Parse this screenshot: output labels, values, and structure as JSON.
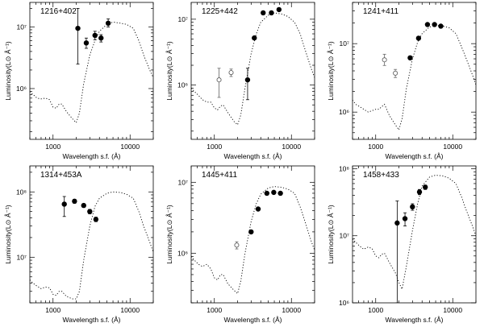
{
  "chart_data": [
    {
      "type": "scatter",
      "title": "1216+402",
      "xlabel": "Wavelength s.f. (Å)",
      "ylabel": "Luminosity(L⊙ Å⁻¹)",
      "xscale": "log",
      "yscale": "log",
      "xlim": [
        500,
        20000
      ],
      "ylim": [
        150000,
        25000000
      ],
      "xticks": [
        {
          "v": 1000,
          "label": "1000"
        },
        {
          "v": 10000,
          "label": "10000"
        }
      ],
      "yticks": [
        {
          "v": 1000000,
          "label": "10⁶"
        },
        {
          "v": 10000000,
          "label": "10⁷"
        }
      ],
      "filled": [
        {
          "x": 2100,
          "y": 9500000,
          "ylo": 2500000,
          "yhi": 20000000
        },
        {
          "x": 2700,
          "y": 5500000,
          "ylo": 4500000,
          "yhi": 6600000
        },
        {
          "x": 3500,
          "y": 7300000,
          "ylo": 6200000,
          "yhi": 8500000
        },
        {
          "x": 4200,
          "y": 6600000,
          "ylo": 5700000,
          "yhi": 7500000
        },
        {
          "x": 5200,
          "y": 11500000,
          "ylo": 10000000,
          "yhi": 13500000
        }
      ],
      "open": [],
      "model": [
        [
          500,
          900000
        ],
        [
          550,
          800000
        ],
        [
          620,
          700000
        ],
        [
          700,
          680000
        ],
        [
          800,
          700000
        ],
        [
          900,
          660000
        ],
        [
          1000,
          500000
        ],
        [
          1100,
          480000
        ],
        [
          1200,
          560000
        ],
        [
          1300,
          560000
        ],
        [
          1500,
          420000
        ],
        [
          1800,
          320000
        ],
        [
          2000,
          280000
        ],
        [
          2200,
          400000
        ],
        [
          2500,
          1200000
        ],
        [
          3000,
          3500000
        ],
        [
          3500,
          6000000
        ],
        [
          4000,
          8500000
        ],
        [
          5000,
          11000000
        ],
        [
          6000,
          12000000
        ],
        [
          7500,
          11500000
        ],
        [
          9000,
          11000000
        ],
        [
          11000,
          9500000
        ],
        [
          13000,
          6000000
        ],
        [
          15000,
          3500000
        ],
        [
          18000,
          2000000
        ],
        [
          20000,
          1500000
        ]
      ]
    },
    {
      "type": "scatter",
      "title": "1225+442",
      "xlabel": "Wavelength s.f. (Å)",
      "ylabel": "Luminosity(L⊙ Å⁻¹)",
      "xscale": "log",
      "yscale": "log",
      "xlim": [
        500,
        20000
      ],
      "ylim": [
        150000,
        18000000
      ],
      "xticks": [
        {
          "v": 1000,
          "label": "1000"
        },
        {
          "v": 10000,
          "label": "10000"
        }
      ],
      "yticks": [
        {
          "v": 1000000,
          "label": "10⁶"
        },
        {
          "v": 10000000,
          "label": "10⁷"
        }
      ],
      "filled": [
        {
          "x": 2700,
          "y": 1200000,
          "ylo": 600000,
          "yhi": 1800000
        },
        {
          "x": 3300,
          "y": 5200000,
          "ylo": 5000000,
          "yhi": 5400000
        },
        {
          "x": 4300,
          "y": 12500000,
          "ylo": 12000000,
          "yhi": 13000000
        },
        {
          "x": 5500,
          "y": 12500000,
          "ylo": 12000000,
          "yhi": 13000000
        },
        {
          "x": 6900,
          "y": 14000000,
          "ylo": 13500000,
          "yhi": 14500000
        }
      ],
      "open": [
        {
          "x": 1150,
          "y": 1200000,
          "ylo": 650000,
          "yhi": 1800000
        },
        {
          "x": 1650,
          "y": 1550000,
          "ylo": 1350000,
          "yhi": 1750000
        }
      ],
      "model": [
        [
          500,
          900000
        ],
        [
          550,
          800000
        ],
        [
          620,
          700000
        ],
        [
          700,
          600000
        ],
        [
          800,
          550000
        ],
        [
          900,
          550000
        ],
        [
          1000,
          450000
        ],
        [
          1100,
          420000
        ],
        [
          1200,
          480000
        ],
        [
          1300,
          500000
        ],
        [
          1500,
          380000
        ],
        [
          1800,
          280000
        ],
        [
          2000,
          250000
        ],
        [
          2200,
          350000
        ],
        [
          2500,
          900000
        ],
        [
          3000,
          3000000
        ],
        [
          3500,
          6000000
        ],
        [
          4000,
          9000000
        ],
        [
          5000,
          11500000
        ],
        [
          6000,
          12500000
        ],
        [
          7500,
          12000000
        ],
        [
          9000,
          11000000
        ],
        [
          11000,
          9000000
        ],
        [
          13000,
          6000000
        ],
        [
          15000,
          3500000
        ],
        [
          18000,
          1800000
        ],
        [
          20000,
          1300000
        ]
      ]
    },
    {
      "type": "scatter",
      "title": "1241+411",
      "xlabel": "Wavelength s.f. (Å)",
      "ylabel": "Luminosity(L⊙ Å⁻¹)",
      "xscale": "log",
      "yscale": "log",
      "xlim": [
        500,
        20000
      ],
      "ylim": [
        400000,
        40000000
      ],
      "xticks": [
        {
          "v": 1000,
          "label": "1000"
        },
        {
          "v": 10000,
          "label": "10000"
        }
      ],
      "yticks": [
        {
          "v": 1000000,
          "label": "10⁶"
        },
        {
          "v": 10000000,
          "label": "10⁷"
        }
      ],
      "filled": [
        {
          "x": 2800,
          "y": 6200000,
          "ylo": 5900000,
          "yhi": 6500000
        },
        {
          "x": 3600,
          "y": 12000000,
          "ylo": 11400000,
          "yhi": 12600000
        },
        {
          "x": 4700,
          "y": 19000000,
          "ylo": 18200000,
          "yhi": 19800000
        },
        {
          "x": 5800,
          "y": 19000000,
          "ylo": 18200000,
          "yhi": 19800000
        },
        {
          "x": 7000,
          "y": 18000000,
          "ylo": 17200000,
          "yhi": 18800000
        }
      ],
      "open": [
        {
          "x": 1300,
          "y": 5800000,
          "ylo": 4800000,
          "yhi": 7000000
        },
        {
          "x": 1800,
          "y": 3700000,
          "ylo": 3200000,
          "yhi": 4200000
        }
      ],
      "model": [
        [
          500,
          1500000
        ],
        [
          550,
          1300000
        ],
        [
          620,
          1200000
        ],
        [
          700,
          1100000
        ],
        [
          800,
          1000000
        ],
        [
          900,
          1050000
        ],
        [
          1000,
          1100000
        ],
        [
          1100,
          1100000
        ],
        [
          1200,
          1200000
        ],
        [
          1300,
          1300000
        ],
        [
          1500,
          900000
        ],
        [
          1800,
          650000
        ],
        [
          2000,
          550000
        ],
        [
          2200,
          800000
        ],
        [
          2500,
          2200000
        ],
        [
          3000,
          6000000
        ],
        [
          3500,
          10500000
        ],
        [
          4000,
          14000000
        ],
        [
          5000,
          17500000
        ],
        [
          6000,
          18500000
        ],
        [
          7500,
          18000000
        ],
        [
          9000,
          17000000
        ],
        [
          11000,
          14000000
        ],
        [
          13000,
          9000000
        ],
        [
          15000,
          6000000
        ],
        [
          18000,
          3500000
        ],
        [
          20000,
          2500000
        ]
      ]
    },
    {
      "type": "scatter",
      "title": "1314+453A",
      "xlabel": "Wavelength s.f. (Å)",
      "ylabel": "Luminosity(L⊙ Å⁻¹)",
      "xscale": "log",
      "yscale": "log",
      "xlim": [
        500,
        20000
      ],
      "ylim": [
        2000000,
        250000000
      ],
      "xticks": [
        {
          "v": 1000,
          "label": "1000"
        },
        {
          "v": 10000,
          "label": "10000"
        }
      ],
      "yticks": [
        {
          "v": 10000000,
          "label": "10⁷"
        },
        {
          "v": 100000000,
          "label": "10⁸"
        }
      ],
      "filled": [
        {
          "x": 1400,
          "y": 65000000,
          "ylo": 42000000,
          "yhi": 85000000
        },
        {
          "x": 1900,
          "y": 72000000,
          "ylo": 67000000,
          "yhi": 77000000
        },
        {
          "x": 2500,
          "y": 62000000,
          "ylo": 58000000,
          "yhi": 66000000
        },
        {
          "x": 3000,
          "y": 50000000,
          "ylo": 46000000,
          "yhi": 54000000
        },
        {
          "x": 3600,
          "y": 38000000,
          "ylo": 35000000,
          "yhi": 41000000
        }
      ],
      "open": [],
      "model": [
        [
          500,
          4500000
        ],
        [
          550,
          4000000
        ],
        [
          620,
          3600000
        ],
        [
          700,
          3300000
        ],
        [
          800,
          3500000
        ],
        [
          900,
          3400000
        ],
        [
          1000,
          2700000
        ],
        [
          1100,
          2600000
        ],
        [
          1200,
          3000000
        ],
        [
          1300,
          3000000
        ],
        [
          1500,
          2500000
        ],
        [
          1800,
          2300000
        ],
        [
          2000,
          2300000
        ],
        [
          2200,
          3000000
        ],
        [
          2500,
          9000000
        ],
        [
          3000,
          30000000
        ],
        [
          3500,
          60000000
        ],
        [
          4000,
          80000000
        ],
        [
          5000,
          95000000
        ],
        [
          6000,
          100000000
        ],
        [
          7500,
          98000000
        ],
        [
          9000,
          92000000
        ],
        [
          11000,
          80000000
        ],
        [
          13000,
          50000000
        ],
        [
          15000,
          30000000
        ],
        [
          18000,
          17000000
        ],
        [
          20000,
          12000000
        ]
      ]
    },
    {
      "type": "scatter",
      "title": "1445+411",
      "xlabel": "Wavelength s.f. (Å)",
      "ylabel": "Luminosity(L⊙ Å⁻¹)",
      "xscale": "log",
      "yscale": "log",
      "xlim": [
        500,
        20000
      ],
      "ylim": [
        200000,
        17000000
      ],
      "xticks": [
        {
          "v": 1000,
          "label": "1000"
        },
        {
          "v": 10000,
          "label": "10000"
        }
      ],
      "yticks": [
        {
          "v": 1000000,
          "label": "10⁶"
        },
        {
          "v": 10000000,
          "label": "10⁷"
        }
      ],
      "filled": [
        {
          "x": 3000,
          "y": 2000000,
          "ylo": 1900000,
          "yhi": 2100000
        },
        {
          "x": 3700,
          "y": 4200000,
          "ylo": 4000000,
          "yhi": 4400000
        },
        {
          "x": 4800,
          "y": 7000000,
          "ylo": 6700000,
          "yhi": 7300000
        },
        {
          "x": 5900,
          "y": 7200000,
          "ylo": 6900000,
          "yhi": 7500000
        },
        {
          "x": 7200,
          "y": 7000000,
          "ylo": 6700000,
          "yhi": 7300000
        }
      ],
      "open": [
        {
          "x": 1950,
          "y": 1300000,
          "ylo": 1150000,
          "yhi": 1450000
        }
      ],
      "model": [
        [
          500,
          900000
        ],
        [
          550,
          800000
        ],
        [
          620,
          700000
        ],
        [
          700,
          650000
        ],
        [
          800,
          700000
        ],
        [
          900,
          600000
        ],
        [
          1000,
          450000
        ],
        [
          1100,
          420000
        ],
        [
          1200,
          500000
        ],
        [
          1300,
          500000
        ],
        [
          1500,
          370000
        ],
        [
          1800,
          300000
        ],
        [
          2000,
          270000
        ],
        [
          2200,
          400000
        ],
        [
          2500,
          1000000
        ],
        [
          3000,
          2800000
        ],
        [
          3500,
          5000000
        ],
        [
          4000,
          6800000
        ],
        [
          5000,
          8300000
        ],
        [
          6000,
          8700000
        ],
        [
          7500,
          8500000
        ],
        [
          9000,
          8000000
        ],
        [
          11000,
          7000000
        ],
        [
          13000,
          4500000
        ],
        [
          15000,
          2800000
        ],
        [
          18000,
          1500000
        ],
        [
          20000,
          1100000
        ]
      ]
    },
    {
      "type": "scatter",
      "title": "1458+433",
      "xlabel": "Wavelength s.f. (Å)",
      "ylabel": "Luminosity(L⊙ Å⁻¹)",
      "xscale": "log",
      "yscale": "log",
      "xlim": [
        500,
        20000
      ],
      "ylim": [
        1000000,
        110000000
      ],
      "xticks": [
        {
          "v": 1000,
          "label": "1000"
        },
        {
          "v": 10000,
          "label": "10000"
        }
      ],
      "yticks": [
        {
          "v": 1000000,
          "label": "10⁶"
        },
        {
          "v": 10000000,
          "label": "10⁷"
        },
        {
          "v": 100000000,
          "label": "10⁸"
        }
      ],
      "filled": [
        {
          "x": 1900,
          "y": 15500000,
          "ylo": 1000000,
          "yhi": 33000000
        },
        {
          "x": 2400,
          "y": 18000000,
          "ylo": 14000000,
          "yhi": 22000000
        },
        {
          "x": 3000,
          "y": 27000000,
          "ylo": 24000000,
          "yhi": 30000000
        },
        {
          "x": 3700,
          "y": 45000000,
          "ylo": 41000000,
          "yhi": 49000000
        },
        {
          "x": 4400,
          "y": 53000000,
          "ylo": 49000000,
          "yhi": 57000000
        }
      ],
      "open": [],
      "model": [
        [
          500,
          9000000
        ],
        [
          550,
          8000000
        ],
        [
          620,
          7000000
        ],
        [
          700,
          6300000
        ],
        [
          800,
          6800000
        ],
        [
          900,
          6400000
        ],
        [
          1000,
          5000000
        ],
        [
          1100,
          4700000
        ],
        [
          1200,
          5300000
        ],
        [
          1300,
          5500000
        ],
        [
          1500,
          4000000
        ],
        [
          1800,
          2800000
        ],
        [
          2000,
          2000000
        ],
        [
          2200,
          1600000
        ],
        [
          2500,
          3500000
        ],
        [
          3000,
          12000000
        ],
        [
          3500,
          30000000
        ],
        [
          4000,
          55000000
        ],
        [
          5000,
          75000000
        ],
        [
          6000,
          80000000
        ],
        [
          7500,
          78000000
        ],
        [
          9000,
          72000000
        ],
        [
          11000,
          60000000
        ],
        [
          13000,
          38000000
        ],
        [
          15000,
          24000000
        ],
        [
          18000,
          14000000
        ],
        [
          20000,
          10000000
        ]
      ]
    }
  ]
}
